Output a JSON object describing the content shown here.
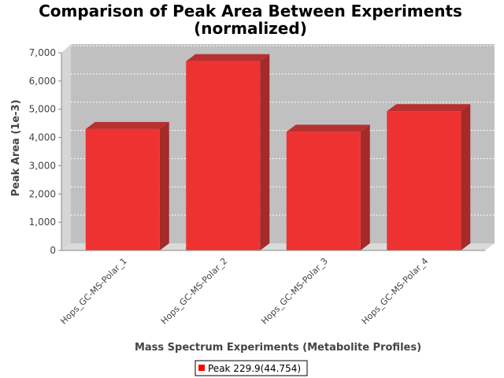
{
  "chart_data": {
    "type": "bar",
    "title_lines": [
      "Comparison of Peak Area Between Experiments",
      "(normalized)"
    ],
    "xlabel": "Mass Spectrum Experiments (Metabolite Profiles)",
    "ylabel": "Peak Area (1e-3)",
    "categories": [
      "Hops_GC-MS-Polar_1",
      "Hops_GC-MS-Polar_2",
      "Hops_GC-MS-Polar_3",
      "Hops_GC-MS-Polar_4"
    ],
    "series": [
      {
        "name": "Peak 229.9(44.754)",
        "values": [
          4300,
          6700,
          4200,
          4930
        ]
      }
    ],
    "ylim": [
      0,
      7000
    ],
    "yticks": [
      0,
      1000,
      2000,
      3000,
      4000,
      5000,
      6000,
      7000
    ],
    "ytick_labels": [
      "0",
      "1,000",
      "2,000",
      "3,000",
      "4,000",
      "5,000",
      "6,000",
      "7,000"
    ],
    "grid": true,
    "three_d": true,
    "legend_position": "bottom",
    "colors": {
      "bar_front": "#ee3232",
      "bar_top": "#b83030",
      "bar_side": "#a52a2a",
      "plot_background": "#c0c0c0",
      "plot_left_wall": "#d6d6d6",
      "plot_floor": "#dadada",
      "gridline": "#ffffff",
      "legend_swatch": "#ff0000"
    }
  }
}
